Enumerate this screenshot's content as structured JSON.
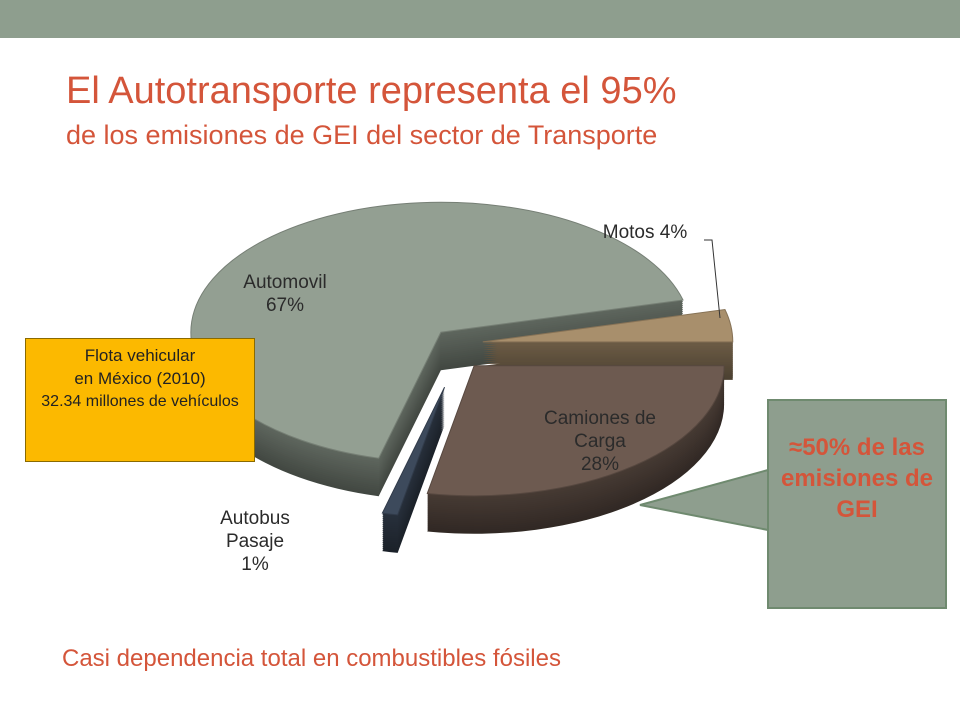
{
  "chart_data": {
    "type": "pie",
    "title": "El Autotransporte representa el 95%",
    "subtitle": "de los emisiones de GEI del sector de Transporte",
    "categories": [
      "Automovil",
      "Motos",
      "Camiones de Carga",
      "Autobus Pasaje"
    ],
    "values": [
      67,
      4,
      28,
      1
    ],
    "value_labels": [
      "67%",
      "4%",
      "28%",
      "1%"
    ],
    "colors": [
      "#939f92",
      "#a88f6c",
      "#6d5a50",
      "#3d4a5c"
    ],
    "annotations": {
      "fleet": [
        "Flota vehicular",
        "en México (2010)",
        "32.34 millones de vehículos"
      ],
      "callout": "≈50% de las emisiones de GEI",
      "footer": "Casi dependencia total en combustibles fósiles"
    }
  }
}
